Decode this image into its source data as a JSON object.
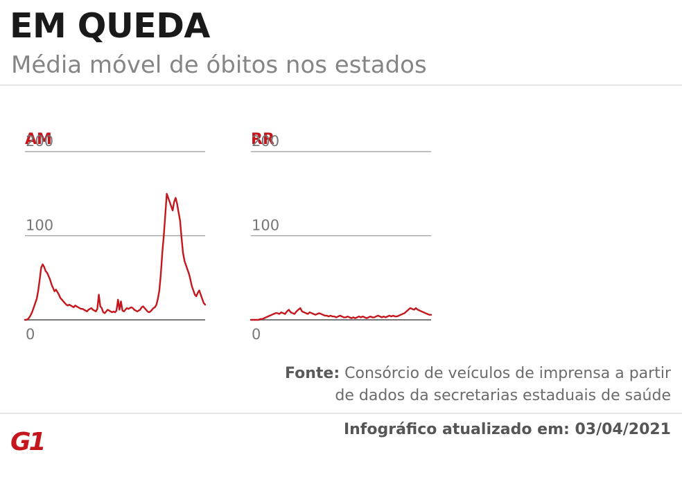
{
  "header": {
    "title": "EM QUEDA",
    "subtitle": "Média móvel de óbitos nos estados"
  },
  "footer": {
    "source_label": "Fonte:",
    "source_text_line1": "Consórcio de veículos de imprensa a partir",
    "source_text_line2": "de dados da secretarias estaduais de saúde",
    "updated": "Infográfico atualizado em: 03/04/2021",
    "logo": "G1"
  },
  "colors": {
    "accent": "#c4161c",
    "grid": "#999999",
    "axis": "#777777",
    "tick": "#777777"
  },
  "chart_data": [
    {
      "type": "line",
      "title": "AM",
      "ylim": [
        0,
        200
      ],
      "yticks": [
        0,
        100,
        200
      ],
      "ytick_labels": [
        "0",
        "100",
        "200"
      ],
      "grid": true,
      "series": [
        {
          "values": [
            0,
            0,
            1,
            3,
            6,
            10,
            15,
            20,
            25,
            35,
            48,
            62,
            66,
            63,
            58,
            56,
            52,
            48,
            42,
            38,
            34,
            36,
            33,
            30,
            26,
            24,
            22,
            20,
            18,
            17,
            18,
            17,
            16,
            15,
            17,
            16,
            15,
            14,
            13,
            13,
            12,
            11,
            10,
            12,
            13,
            14,
            12,
            11,
            10,
            13,
            30,
            16,
            14,
            9,
            8,
            10,
            12,
            11,
            10,
            9,
            10,
            9,
            11,
            24,
            12,
            22,
            11,
            10,
            12,
            14,
            13,
            14,
            15,
            14,
            12,
            11,
            10,
            11,
            12,
            15,
            16,
            14,
            12,
            10,
            9,
            10,
            12,
            14,
            15,
            18,
            25,
            35,
            55,
            80,
            100,
            125,
            150,
            145,
            140,
            135,
            130,
            140,
            145,
            138,
            128,
            118,
            98,
            80,
            70,
            65,
            60,
            55,
            48,
            40,
            35,
            30,
            28,
            32,
            35,
            30,
            25,
            20,
            18
          ]
        }
      ]
    },
    {
      "type": "line",
      "title": "RR",
      "ylim": [
        0,
        200
      ],
      "yticks": [
        0,
        100,
        200
      ],
      "ytick_labels": [
        "0",
        "100",
        "200"
      ],
      "grid": true,
      "series": [
        {
          "values": [
            0,
            0,
            0,
            0,
            0,
            1,
            1,
            2,
            3,
            4,
            5,
            6,
            7,
            8,
            8,
            7,
            9,
            8,
            7,
            10,
            12,
            9,
            8,
            7,
            10,
            12,
            14,
            10,
            9,
            8,
            7,
            9,
            8,
            7,
            6,
            7,
            8,
            7,
            6,
            5,
            5,
            4,
            5,
            4,
            4,
            3,
            4,
            5,
            4,
            3,
            3,
            4,
            3,
            2,
            3,
            2,
            3,
            4,
            3,
            4,
            3,
            2,
            3,
            4,
            3,
            3,
            4,
            5,
            4,
            3,
            4,
            3,
            4,
            5,
            4,
            5,
            4,
            4,
            5,
            6,
            7,
            8,
            10,
            12,
            14,
            13,
            12,
            14,
            12,
            11,
            10,
            9,
            8,
            7,
            6,
            6
          ]
        }
      ]
    }
  ]
}
